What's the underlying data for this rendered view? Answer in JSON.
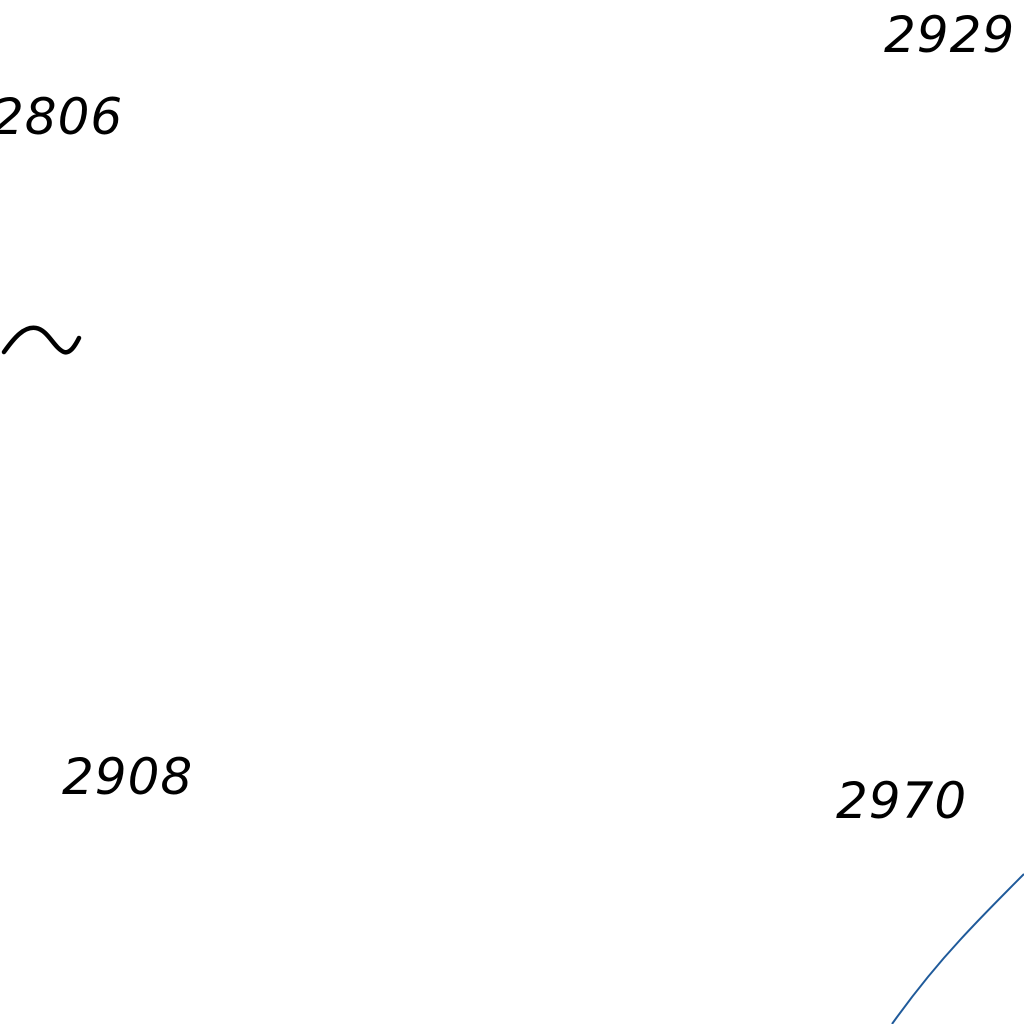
{
  "map": {
    "background": "#ffffff",
    "ink_color": "#000000",
    "contour_color": "#1f5a9a",
    "elevation_labels": [
      {
        "text": "2806"
      },
      {
        "text": "2929"
      },
      {
        "text": "2908"
      },
      {
        "text": "2970"
      }
    ],
    "symbols": [
      {
        "icon": "tilde-wave-icon"
      }
    ]
  }
}
